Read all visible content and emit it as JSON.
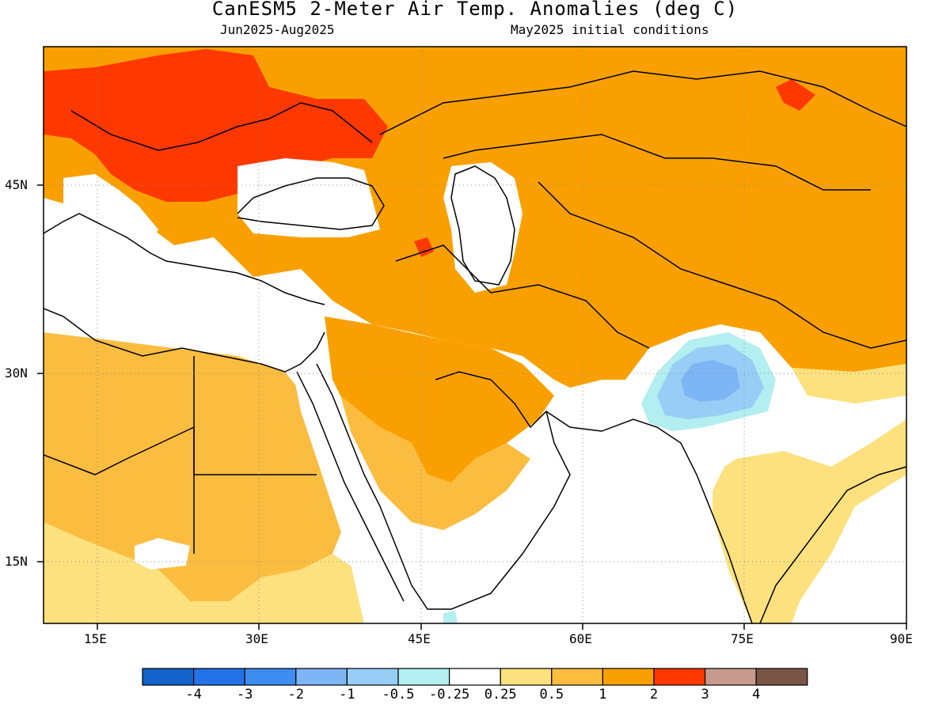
{
  "title": "CanESM5 2-Meter Air Temp. Anomalies (deg C)",
  "subtitle_left": "Jun2025-Aug2025",
  "subtitle_right": "May2025 initial conditions",
  "map": {
    "lon_range": [
      10,
      90
    ],
    "lat_range": [
      10,
      54
    ],
    "lon_ticks": [
      {
        "value": 15,
        "label": "15E"
      },
      {
        "value": 30,
        "label": "30E"
      },
      {
        "value": 45,
        "label": "45E"
      },
      {
        "value": 60,
        "label": "60E"
      },
      {
        "value": 75,
        "label": "75E"
      },
      {
        "value": 90,
        "label": "90E"
      }
    ],
    "lat_ticks": [
      {
        "value": 45,
        "label": "45N"
      },
      {
        "value": 30,
        "label": "30N"
      },
      {
        "value": 15,
        "label": "15N"
      }
    ],
    "grid": "dotted"
  },
  "colorbar": {
    "colors": [
      "#1262c9",
      "#2272e8",
      "#3d8cf0",
      "#7db5f5",
      "#98cdf5",
      "#b3eef0",
      "#ffffff",
      "#fde17e",
      "#fbbd3f",
      "#f9a000",
      "#ff3800",
      "#c59a8c",
      "#7a5548"
    ],
    "labels": [
      "-4",
      "-3",
      "-2",
      "-1",
      "-0.5",
      "-0.25",
      "0.25",
      "0.5",
      "1",
      "2",
      "3",
      "4"
    ]
  }
}
